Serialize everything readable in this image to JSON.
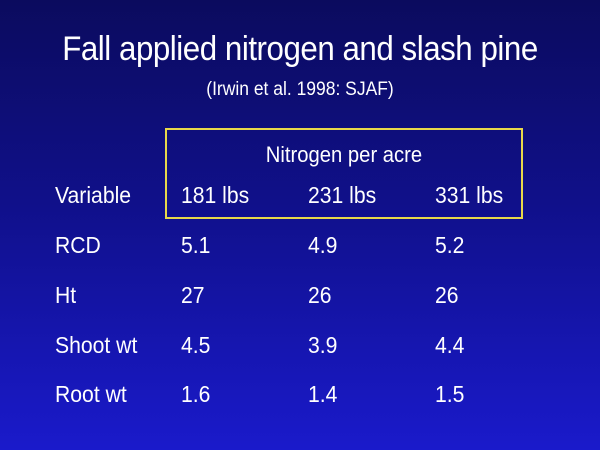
{
  "slide": {
    "title": "Fall applied nitrogen and slash pine",
    "subtitle": "(Irwin et al. 1998: SJAF)"
  },
  "table": {
    "group_header": "Nitrogen per acre",
    "columns": [
      "Variable",
      "181 lbs",
      "231 lbs",
      "331 lbs"
    ],
    "rows": [
      [
        "RCD",
        "5.1",
        "4.9",
        "5.2"
      ],
      [
        "Ht",
        "27",
        "26",
        "26"
      ],
      [
        "Shoot wt",
        "4.5",
        "3.9",
        "4.4"
      ],
      [
        "Root wt",
        "1.6",
        "1.4",
        "1.5"
      ]
    ]
  },
  "colors": {
    "background_top": "#0b0b5e",
    "background_bottom": "#1a1acb",
    "text": "#ffffff",
    "box_border": "#e8d84a"
  }
}
